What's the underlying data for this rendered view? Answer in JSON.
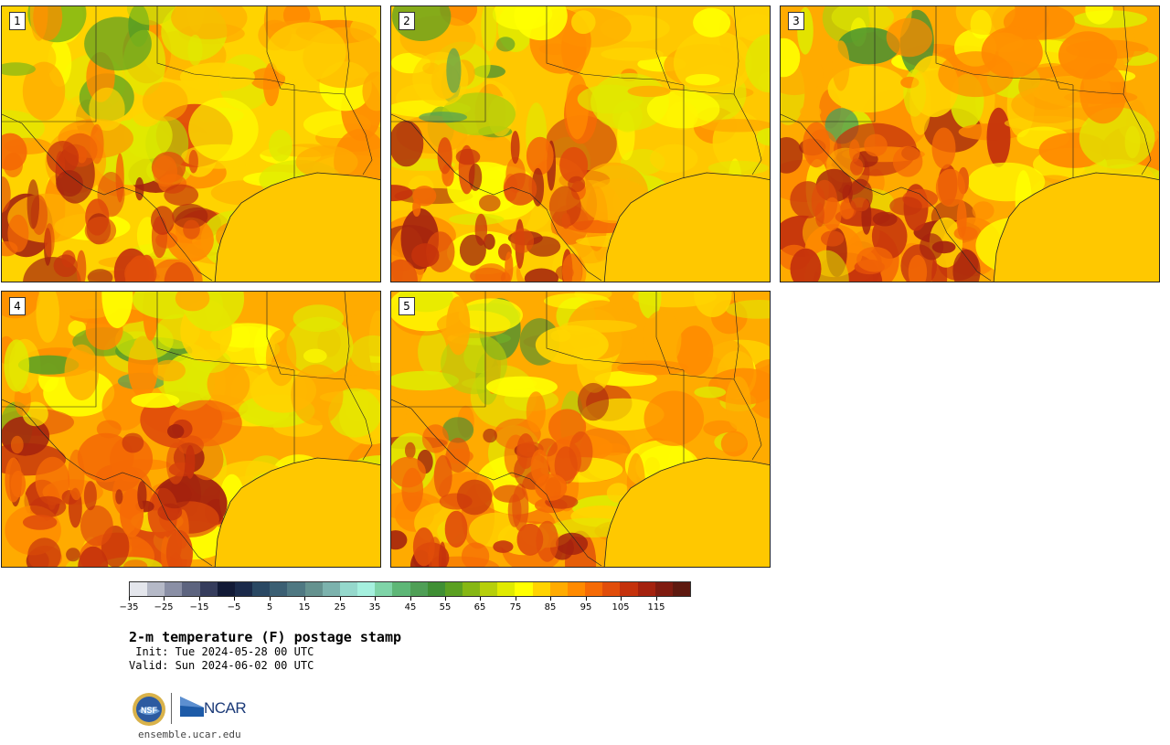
{
  "map": {
    "variable_title": "2-m temperature (F) postage stamp",
    "init_line": " Init: Tue 2024-05-28 00 UTC",
    "valid_line": "Valid: Sun 2024-06-02 00 UTC",
    "website": "ensemble.ucar.edu",
    "logo_text": "NCAR",
    "members": [
      {
        "label": "1",
        "dominant_range": "75-90 F",
        "notes": "cooler greens in northern New Mexico and western Texas; hot orange-red in northern Mexico"
      },
      {
        "label": "2",
        "dominant_range": "80-90 F",
        "notes": "green area across western Texas and New Mexico; very hot in northeastern Mexico"
      },
      {
        "label": "3",
        "dominant_range": "85-95 F",
        "notes": "widespread orange; hottest along Rio Grande valley"
      },
      {
        "label": "4",
        "dominant_range": "85-95 F",
        "notes": "hot across most of region; cooler green over Oklahoma"
      },
      {
        "label": "5",
        "dominant_range": "85-95 F",
        "notes": "green over New Mexico; hot orange-red over Mexico and south Texas"
      }
    ],
    "gulf_color": "#ffc800",
    "colorbar": {
      "colors": [
        "#e4e6ec",
        "#b5b9c7",
        "#8a8fa5",
        "#5d647f",
        "#353c5c",
        "#121a36",
        "#1b2a4a",
        "#2a4863",
        "#3b5f73",
        "#4f7882",
        "#65928f",
        "#7cb2ad",
        "#95d8cc",
        "#a5f0de",
        "#7fd4a8",
        "#5eb777",
        "#4f9f56",
        "#3f8f34",
        "#5ba022",
        "#86b714",
        "#b6cf0a",
        "#e0ea00",
        "#ffff00",
        "#ffd300",
        "#ffab00",
        "#ff8a00",
        "#f56a05",
        "#e14d0a",
        "#c5320c",
        "#a4220e",
        "#7f1b10",
        "#5e190f"
      ],
      "tick_labels": [
        "−35",
        "−25",
        "−15",
        "−5",
        "5",
        "15",
        "25",
        "35",
        "45",
        "55",
        "65",
        "75",
        "85",
        "95",
        "105",
        "115"
      ]
    }
  }
}
